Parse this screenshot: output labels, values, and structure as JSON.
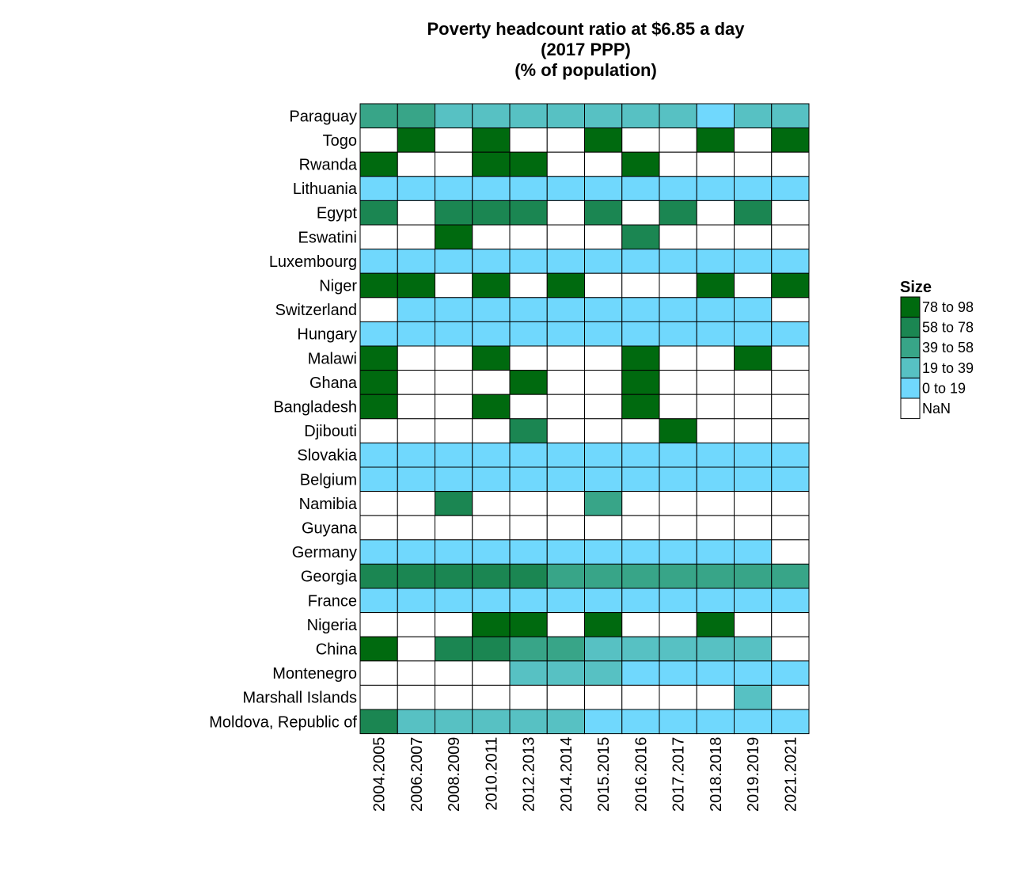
{
  "chart_data": {
    "type": "heatmap",
    "title": [
      "Poverty headcount ratio at $6.85 a day",
      "(2017 PPP)",
      "(% of population)"
    ],
    "xlabel": "",
    "ylabel": "",
    "grid": false,
    "legend_placement": "right",
    "x": [
      "2004.2005",
      "2006.2007",
      "2008.2009",
      "2010.2011",
      "2012.2013",
      "2014.2014",
      "2015.2015",
      "2016.2016",
      "2017.2017",
      "2018.2018",
      "2019.2019",
      "2021.2021"
    ],
    "y": [
      "Paraguay",
      "Togo",
      "Rwanda",
      "Lithuania",
      "Egypt",
      "Eswatini",
      "Luxembourg",
      "Niger",
      "Switzerland",
      "Hungary",
      "Malawi",
      "Ghana",
      "Bangladesh",
      "Djibouti",
      "Slovakia",
      "Belgium",
      "Namibia",
      "Guyana",
      "Germany",
      "Georgia",
      "France",
      "Nigeria",
      "China",
      "Montenegro",
      "Marshall Islands",
      "Moldova, Republic of"
    ],
    "legend": {
      "title": "Size",
      "bins": [
        {
          "label": "78 to 98",
          "color": "#006a0f"
        },
        {
          "label": "58 to 78",
          "color": "#1b8652"
        },
        {
          "label": "39 to 58",
          "color": "#38a588"
        },
        {
          "label": "19 to 39",
          "color": "#57c1c3"
        },
        {
          "label": "0 to 19",
          "color": "#70d8fd"
        },
        {
          "label": "NaN",
          "color": "#ffffff"
        }
      ]
    },
    "bin_index_note_free": true,
    "cells": [
      [
        2,
        2,
        3,
        3,
        3,
        3,
        3,
        3,
        3,
        4,
        3,
        3
      ],
      [
        5,
        0,
        5,
        0,
        5,
        5,
        0,
        5,
        5,
        0,
        5,
        0
      ],
      [
        0,
        5,
        5,
        0,
        0,
        5,
        5,
        0,
        5,
        5,
        5,
        5
      ],
      [
        4,
        4,
        4,
        4,
        4,
        4,
        4,
        4,
        4,
        4,
        4,
        4
      ],
      [
        1,
        5,
        1,
        1,
        1,
        5,
        1,
        5,
        1,
        5,
        1,
        5
      ],
      [
        5,
        5,
        0,
        5,
        5,
        5,
        5,
        1,
        5,
        5,
        5,
        5
      ],
      [
        4,
        4,
        4,
        4,
        4,
        4,
        4,
        4,
        4,
        4,
        4,
        4
      ],
      [
        0,
        0,
        5,
        0,
        5,
        0,
        5,
        5,
        5,
        0,
        5,
        0
      ],
      [
        5,
        4,
        4,
        4,
        4,
        4,
        4,
        4,
        4,
        4,
        4,
        5
      ],
      [
        4,
        4,
        4,
        4,
        4,
        4,
        4,
        4,
        4,
        4,
        4,
        4
      ],
      [
        0,
        5,
        5,
        0,
        5,
        5,
        5,
        0,
        5,
        5,
        0,
        5
      ],
      [
        0,
        5,
        5,
        5,
        0,
        5,
        5,
        0,
        5,
        5,
        5,
        5
      ],
      [
        0,
        5,
        5,
        0,
        5,
        5,
        5,
        0,
        5,
        5,
        5,
        5
      ],
      [
        5,
        5,
        5,
        5,
        1,
        5,
        5,
        5,
        0,
        5,
        5,
        5
      ],
      [
        4,
        4,
        4,
        4,
        4,
        4,
        4,
        4,
        4,
        4,
        4,
        4
      ],
      [
        4,
        4,
        4,
        4,
        4,
        4,
        4,
        4,
        4,
        4,
        4,
        4
      ],
      [
        5,
        5,
        1,
        5,
        5,
        5,
        2,
        5,
        5,
        5,
        5,
        5
      ],
      [
        5,
        5,
        5,
        5,
        5,
        5,
        5,
        5,
        5,
        5,
        5,
        5
      ],
      [
        4,
        4,
        4,
        4,
        4,
        4,
        4,
        4,
        4,
        4,
        4,
        5
      ],
      [
        1,
        1,
        1,
        1,
        1,
        2,
        2,
        2,
        2,
        2,
        2,
        2
      ],
      [
        4,
        4,
        4,
        4,
        4,
        4,
        4,
        4,
        4,
        4,
        4,
        4
      ],
      [
        5,
        5,
        5,
        0,
        0,
        5,
        0,
        5,
        5,
        0,
        5,
        5
      ],
      [
        0,
        5,
        1,
        1,
        2,
        2,
        3,
        3,
        3,
        3,
        3,
        5
      ],
      [
        5,
        5,
        5,
        5,
        3,
        3,
        3,
        4,
        4,
        4,
        4,
        4
      ],
      [
        5,
        5,
        5,
        5,
        5,
        5,
        5,
        5,
        5,
        5,
        3,
        5
      ],
      [
        1,
        3,
        3,
        3,
        3,
        3,
        4,
        4,
        4,
        4,
        4,
        4
      ]
    ]
  }
}
